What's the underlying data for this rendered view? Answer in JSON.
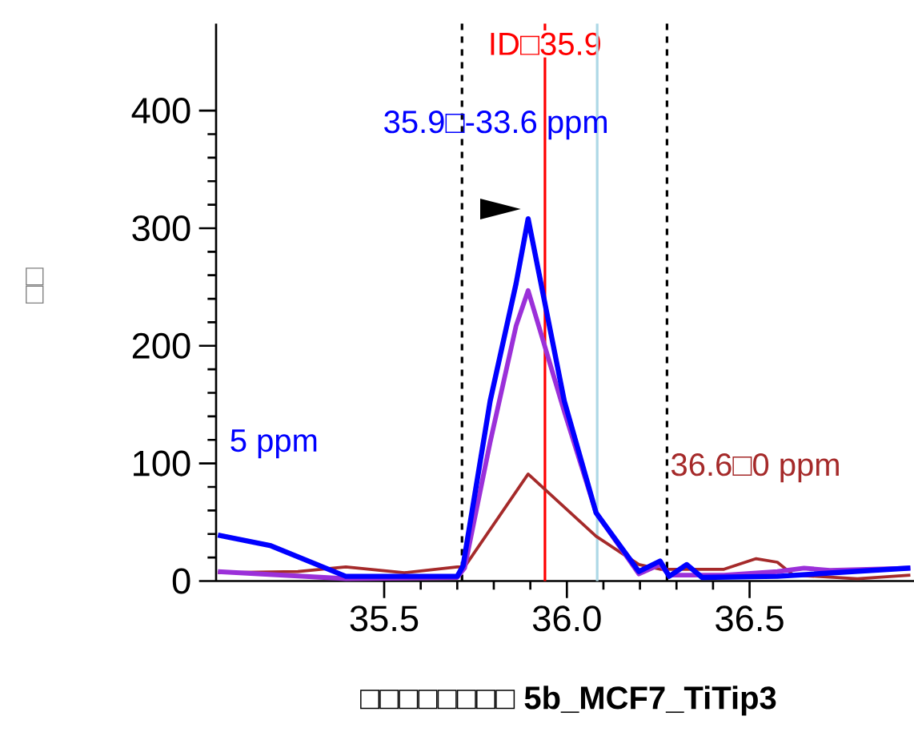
{
  "chart_data": {
    "type": "line",
    "xlabel": "□□□□□□□□ **5b_MCF7_TiTip3**",
    "ylabel": "□□",
    "xlim": [
      35.04,
      36.95
    ],
    "ylim": [
      0,
      474
    ],
    "xticks": [
      35.5,
      {
        "value": 36,
        "label": "36.0"
      },
      36.5
    ],
    "yticks": [
      0,
      100,
      200,
      300,
      400
    ],
    "series": [
      {
        "color": "#a52a2a",
        "x": [
          35.045,
          35.264,
          35.395,
          35.555,
          35.7,
          35.72,
          35.894,
          36.08,
          36.197,
          36.255,
          36.43,
          36.518,
          36.576,
          36.62,
          36.795,
          36.94
        ],
        "values": [
          7,
          8,
          12,
          7,
          12,
          12,
          91,
          38,
          14,
          10,
          10,
          19,
          16,
          5,
          2,
          5
        ]
      },
      {
        "color": "#9b30d9",
        "x": [
          35.045,
          35.395,
          35.7,
          35.72,
          35.79,
          35.861,
          35.894,
          35.993,
          36.08,
          36.197,
          36.255,
          36.28,
          36.43,
          36.576,
          36.649,
          36.72,
          36.94
        ],
        "values": [
          8,
          2,
          3,
          11,
          118,
          217,
          247,
          144,
          58,
          6,
          14,
          5,
          5,
          8,
          11,
          9,
          11
        ]
      },
      {
        "color": "#0000ff",
        "x": [
          35.045,
          35.19,
          35.395,
          35.7,
          35.716,
          35.79,
          35.861,
          35.894,
          35.993,
          36.08,
          36.197,
          36.255,
          36.28,
          36.328,
          36.37,
          36.576,
          36.94
        ],
        "values": [
          39,
          30,
          4,
          4,
          13,
          153,
          253,
          308,
          153,
          58,
          8,
          17,
          4,
          14,
          3,
          4,
          11
        ]
      }
    ],
    "ref_lines": [
      {
        "axis": "x",
        "value": 35.94,
        "label": "ID□35.9",
        "color": "#ff0000",
        "line_style": "solid"
      },
      {
        "axis": "x",
        "value": 36.083,
        "color": "#add8e6",
        "line_style": "solid"
      },
      {
        "axis": "x",
        "value": 35.713,
        "color": "#000000",
        "line_style": "dashed"
      },
      {
        "axis": "x",
        "value": 36.274,
        "color": "#000000",
        "line_style": "dashed"
      }
    ],
    "annotations": [
      "35.9□-33.6 ppm",
      "5 ppm",
      "36.6□0 ppm"
    ]
  }
}
